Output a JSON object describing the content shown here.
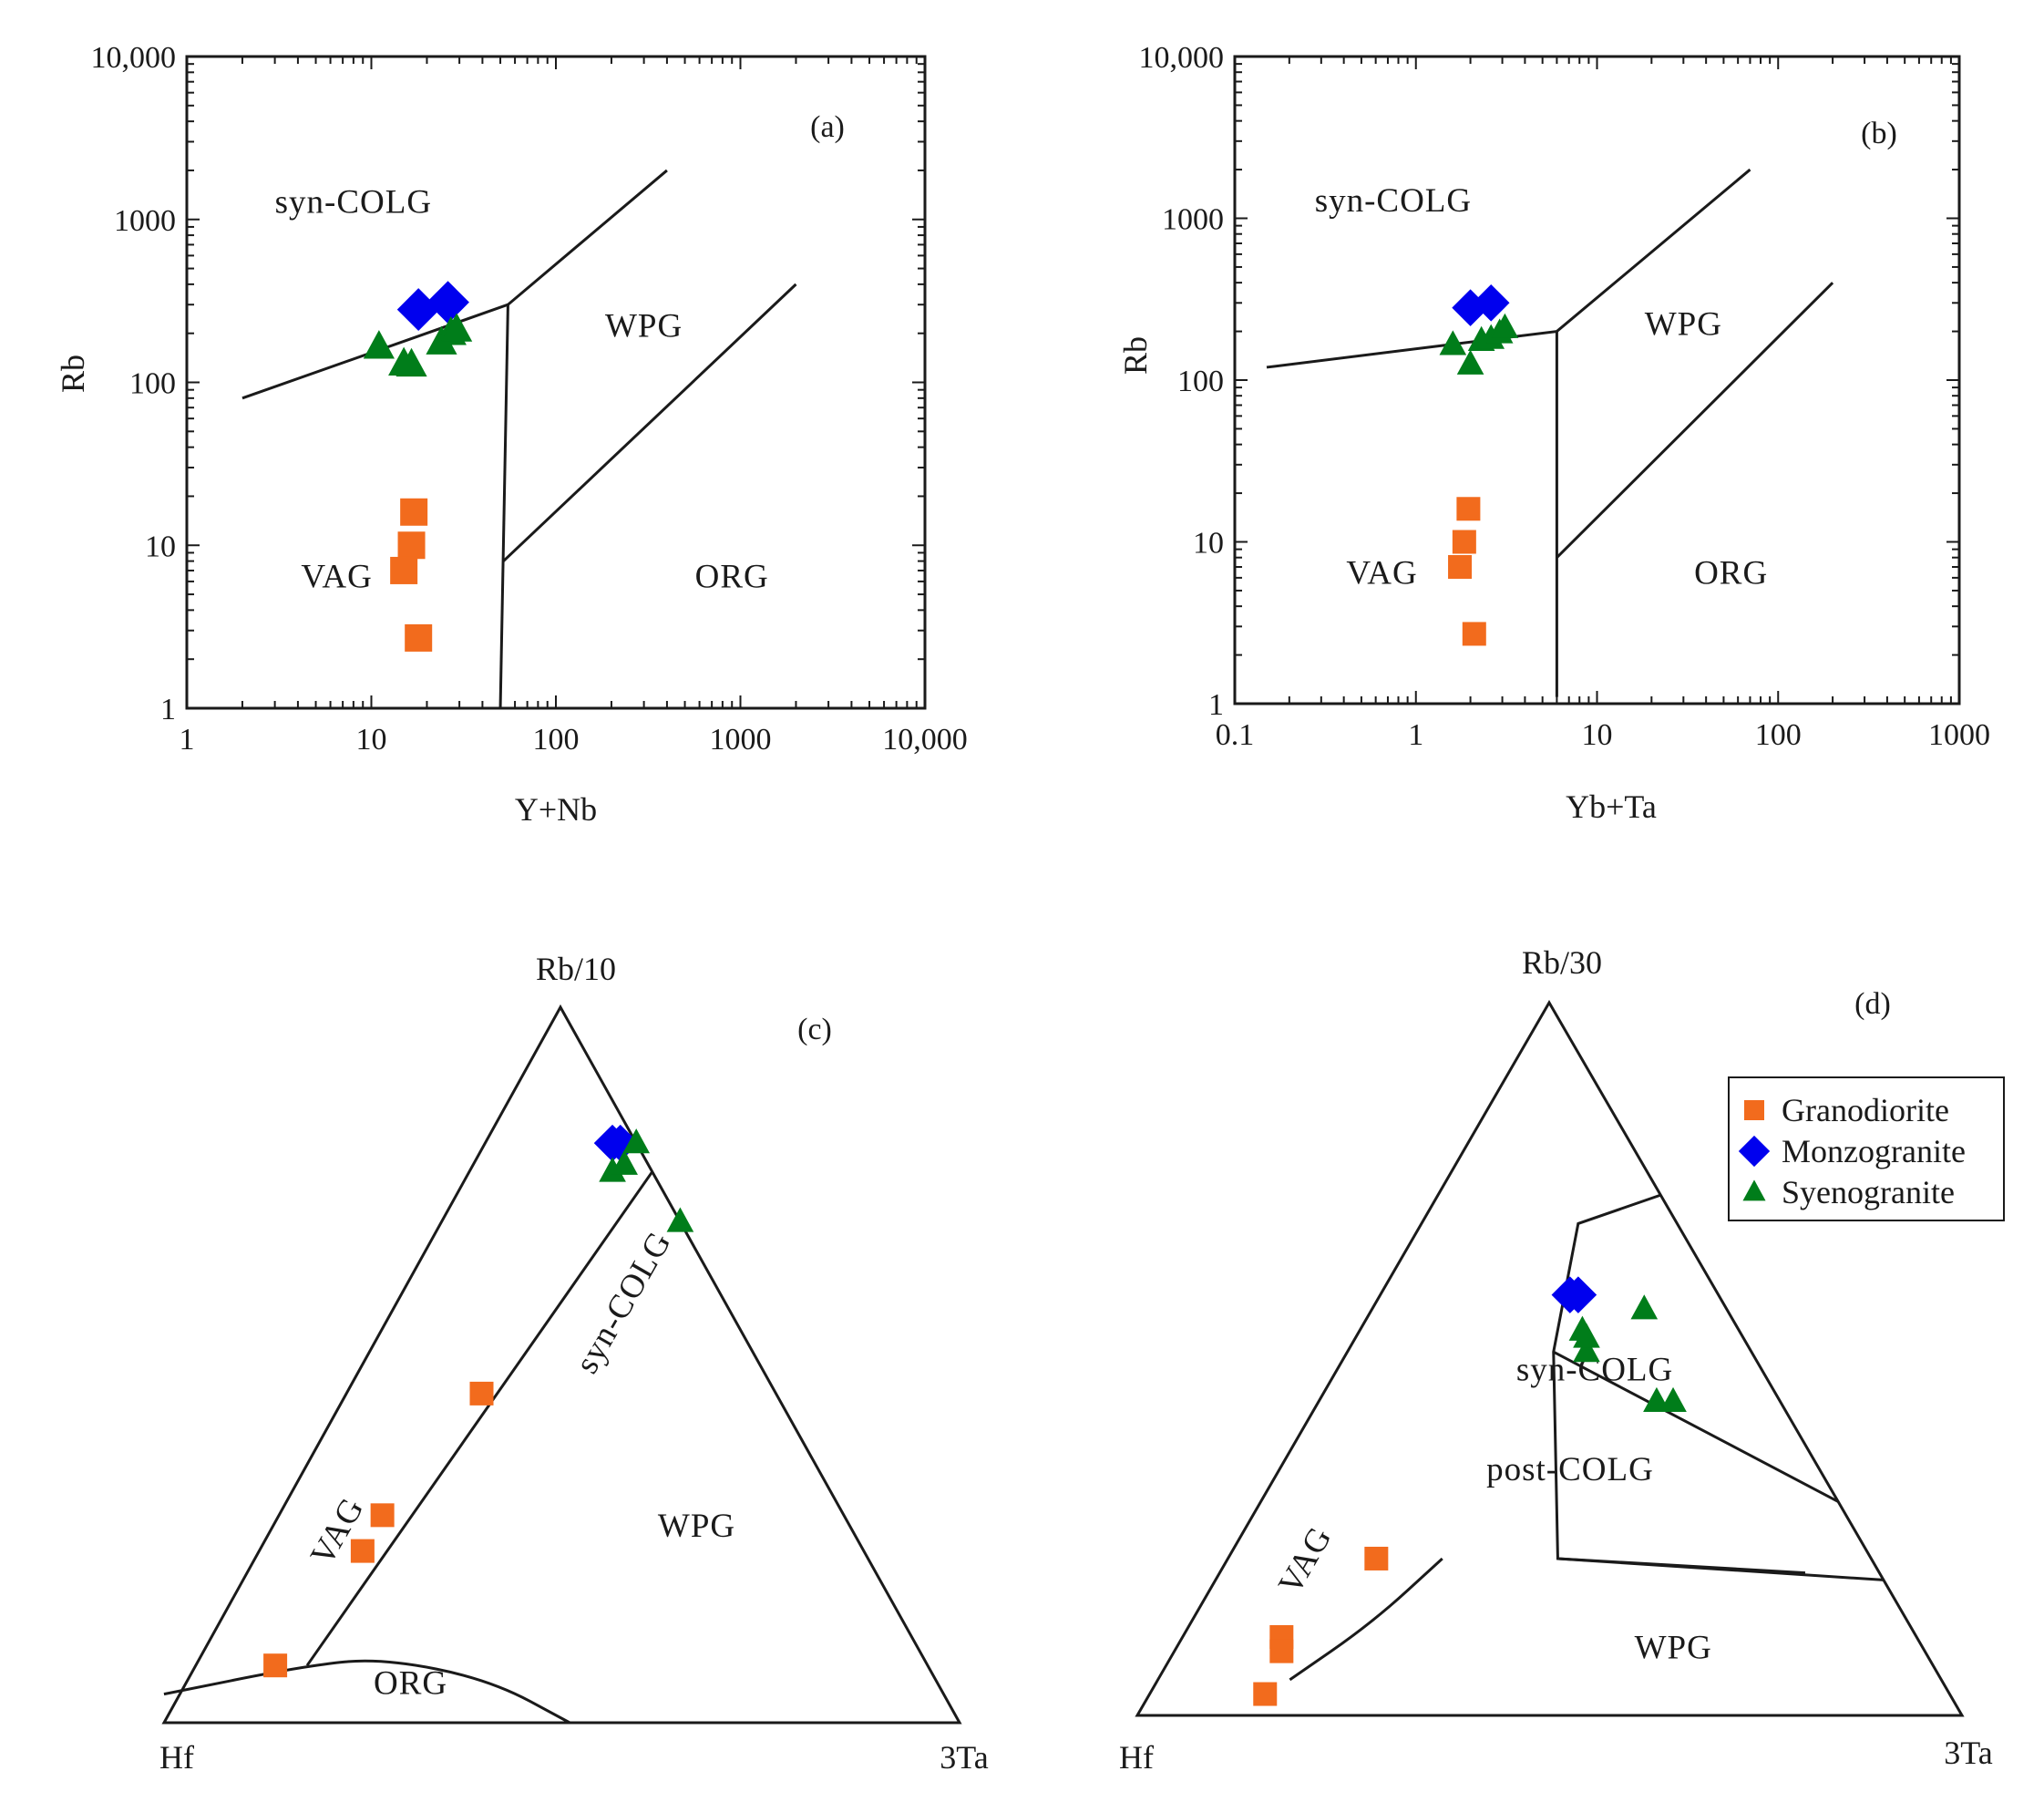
{
  "colors": {
    "granodiorite": "#f26b1d",
    "monzogranite": "#0000ee",
    "syenogranite": "#007d1a"
  },
  "legend": [
    {
      "name": "Granodiorite",
      "marker": "square"
    },
    {
      "name": "Monzogranite",
      "marker": "diamond"
    },
    {
      "name": "Syenogranite",
      "marker": "triangle"
    }
  ],
  "chart_data": [
    {
      "id": "a",
      "panel_label": "(a)",
      "type": "scatter",
      "xlabel": "Y+Nb",
      "ylabel": "Rb",
      "xscale": "log",
      "yscale": "log",
      "xlim": [
        1,
        10000
      ],
      "ylim": [
        1,
        10000
      ],
      "xticks": [
        1,
        10,
        100,
        1000,
        10000
      ],
      "xtick_labels": [
        "1",
        "10",
        "100",
        "1000",
        "10,000"
      ],
      "yticks": [
        1,
        10,
        100,
        1000,
        10000
      ],
      "ytick_labels": [
        "1",
        "10",
        "100",
        "1000",
        "10,000"
      ],
      "fields": [
        {
          "label": "syn-COLG",
          "at": [
            8,
            1100
          ]
        },
        {
          "label": "WPG",
          "at": [
            300,
            190
          ]
        },
        {
          "label": "VAG",
          "at": [
            6.5,
            5.5
          ]
        },
        {
          "label": "ORG",
          "at": [
            900,
            5.5
          ]
        }
      ],
      "boundaries": [
        [
          [
            2,
            80
          ],
          [
            55,
            300
          ],
          [
            400,
            2000
          ]
        ],
        [
          [
            55,
            300
          ],
          [
            50,
            1
          ]
        ],
        [
          [
            52,
            8
          ],
          [
            2000,
            400
          ]
        ]
      ],
      "series": [
        {
          "name": "Granodiorite",
          "points": [
            [
              17,
              16
            ],
            [
              16.5,
              10
            ],
            [
              15,
              7
            ],
            [
              18,
              2.7
            ]
          ]
        },
        {
          "name": "Monzogranite",
          "points": [
            [
              18,
              280
            ],
            [
              26,
              310
            ]
          ]
        },
        {
          "name": "Syenogranite",
          "points": [
            [
              11,
              165
            ],
            [
              15,
              130
            ],
            [
              16.5,
              128
            ],
            [
              24,
              175
            ],
            [
              27,
              200
            ],
            [
              29,
              210
            ]
          ]
        }
      ]
    },
    {
      "id": "b",
      "panel_label": "(b)",
      "type": "scatter",
      "xlabel": "Yb+Ta",
      "ylabel": "Rb",
      "xscale": "log",
      "yscale": "log",
      "xlim": [
        0.1,
        1000
      ],
      "ylim": [
        1,
        10000
      ],
      "xticks": [
        0.1,
        1,
        10,
        100,
        1000
      ],
      "xtick_labels": [
        "0.1",
        "1",
        "10",
        "100",
        "1000"
      ],
      "yticks": [
        1,
        10,
        100,
        1000,
        10000
      ],
      "ytick_labels": [
        "1",
        "10",
        "100",
        "1000",
        "10,000"
      ],
      "fields": [
        {
          "label": "syn-COLG",
          "at": [
            0.75,
            1100
          ]
        },
        {
          "label": "WPG",
          "at": [
            30,
            190
          ]
        },
        {
          "label": "VAG",
          "at": [
            0.65,
            5.5
          ]
        },
        {
          "label": "ORG",
          "at": [
            55,
            5.5
          ]
        }
      ],
      "boundaries": [
        [
          [
            0.15,
            120
          ],
          [
            6,
            200
          ],
          [
            70,
            2000
          ]
        ],
        [
          [
            6,
            200
          ],
          [
            6,
            1.1
          ]
        ],
        [
          [
            6,
            8
          ],
          [
            200,
            400
          ]
        ]
      ],
      "series": [
        {
          "name": "Granodiorite",
          "points": [
            [
              1.95,
              16
            ],
            [
              1.85,
              10
            ],
            [
              1.75,
              7
            ],
            [
              2.1,
              2.7
            ]
          ]
        },
        {
          "name": "Monzogranite",
          "points": [
            [
              2,
              280
            ],
            [
              2.6,
              300
            ]
          ]
        },
        {
          "name": "Syenogranite",
          "points": [
            [
              1.6,
              165
            ],
            [
              2,
              125
            ],
            [
              2.3,
              175
            ],
            [
              2.6,
              180
            ],
            [
              2.9,
              195
            ],
            [
              3.1,
              210
            ]
          ]
        }
      ]
    },
    {
      "id": "c",
      "panel_label": "(c)",
      "type": "ternary",
      "apex_labels": {
        "top": "Rb/10",
        "left": "Hf",
        "right": "3Ta"
      },
      "fields": [
        {
          "label": "syn-COLG",
          "at": [
            0.58,
            0.12,
            0.3
          ],
          "rotate": -60
        },
        {
          "label": "VAG",
          "at": [
            0.26,
            0.64,
            0.1
          ],
          "rotate": -60
        },
        {
          "label": "WPG",
          "at": [
            0.26,
            0.2,
            0.54
          ]
        },
        {
          "label": "ORG",
          "at": [
            0.04,
            0.67,
            0.29
          ]
        }
      ],
      "boundaries": [
        {
          "kind": "line",
          "points": [
            [
              0.08,
              0.78,
              0.14
            ],
            [
              0.77,
              0.0,
              0.23
            ]
          ]
        },
        {
          "kind": "curve",
          "points": [
            [
              0.04,
              0.98,
              -0.02
            ],
            [
              0.08,
              0.78,
              0.14
            ],
            [
              0.09,
              0.68,
              0.23
            ],
            [
              0.06,
              0.56,
              0.38
            ],
            [
              0.0,
              0.49,
              0.51
            ]
          ]
        }
      ],
      "series": [
        {
          "name": "Granodiorite",
          "points": [
            [
              0.46,
              0.37,
              0.17
            ],
            [
              0.29,
              0.58,
              0.13
            ],
            [
              0.24,
              0.63,
              0.13
            ],
            [
              0.08,
              0.82,
              0.1
            ]
          ]
        },
        {
          "name": "Monzogranite",
          "points": [
            [
              0.81,
              0.03,
              0.16
            ],
            [
              0.81,
              0.02,
              0.17
            ]
          ]
        },
        {
          "name": "Syenogranite",
          "points": [
            [
              0.81,
              0.0,
              0.19
            ],
            [
              0.77,
              0.05,
              0.18
            ],
            [
              0.78,
              0.03,
              0.19
            ],
            [
              0.7,
              0.0,
              0.3
            ]
          ]
        }
      ]
    },
    {
      "id": "d",
      "panel_label": "(d)",
      "type": "ternary",
      "apex_labels": {
        "top": "Rb/30",
        "left": "Hf",
        "right": "3Ta"
      },
      "fields": [
        {
          "label": "syn-COLG",
          "at": [
            0.47,
            0.21,
            0.32
          ]
        },
        {
          "label": "post-COLG",
          "at": [
            0.33,
            0.31,
            0.36
          ]
        },
        {
          "label": "VAG",
          "at": [
            0.21,
            0.68,
            0.11
          ],
          "rotate": -60
        },
        {
          "label": "WPG",
          "at": [
            0.08,
            0.31,
            0.61
          ]
        }
      ],
      "boundaries": [
        {
          "kind": "line",
          "points": [
            [
              0.73,
              0.0,
              0.27
            ],
            [
              0.69,
              0.12,
              0.19
            ],
            [
              0.51,
              0.24,
              0.25
            ],
            [
              0.22,
              0.38,
              0.4
            ],
            [
              0.2,
              0.09,
              0.71
            ]
          ]
        },
        {
          "kind": "line",
          "points": [
            [
              0.51,
              0.24,
              0.25
            ],
            [
              0.3,
              0.0,
              0.7
            ]
          ]
        },
        {
          "kind": "line",
          "points": [
            [
              0.22,
              0.38,
              0.4
            ],
            [
              0.19,
              0.0,
              0.81
            ]
          ]
        },
        {
          "kind": "curve",
          "points": [
            [
              0.05,
              0.79,
              0.16
            ],
            [
              0.13,
              0.65,
              0.22
            ],
            [
              0.22,
              0.52,
              0.26
            ]
          ]
        }
      ],
      "series": [
        {
          "name": "Granodiorite",
          "points": [
            [
              0.22,
              0.6,
              0.18
            ],
            [
              0.11,
              0.77,
              0.12
            ],
            [
              0.09,
              0.78,
              0.13
            ],
            [
              0.03,
              0.83,
              0.14
            ]
          ]
        },
        {
          "name": "Monzogranite",
          "points": [
            [
              0.59,
              0.18,
              0.23
            ],
            [
              0.59,
              0.17,
              0.24
            ]
          ]
        },
        {
          "name": "Syenogranite",
          "points": [
            [
              0.57,
              0.1,
              0.33
            ],
            [
              0.54,
              0.19,
              0.27
            ],
            [
              0.51,
              0.2,
              0.29
            ],
            [
              0.53,
              0.19,
              0.28
            ],
            [
              0.44,
              0.15,
              0.41
            ],
            [
              0.44,
              0.13,
              0.43
            ]
          ]
        }
      ]
    }
  ]
}
